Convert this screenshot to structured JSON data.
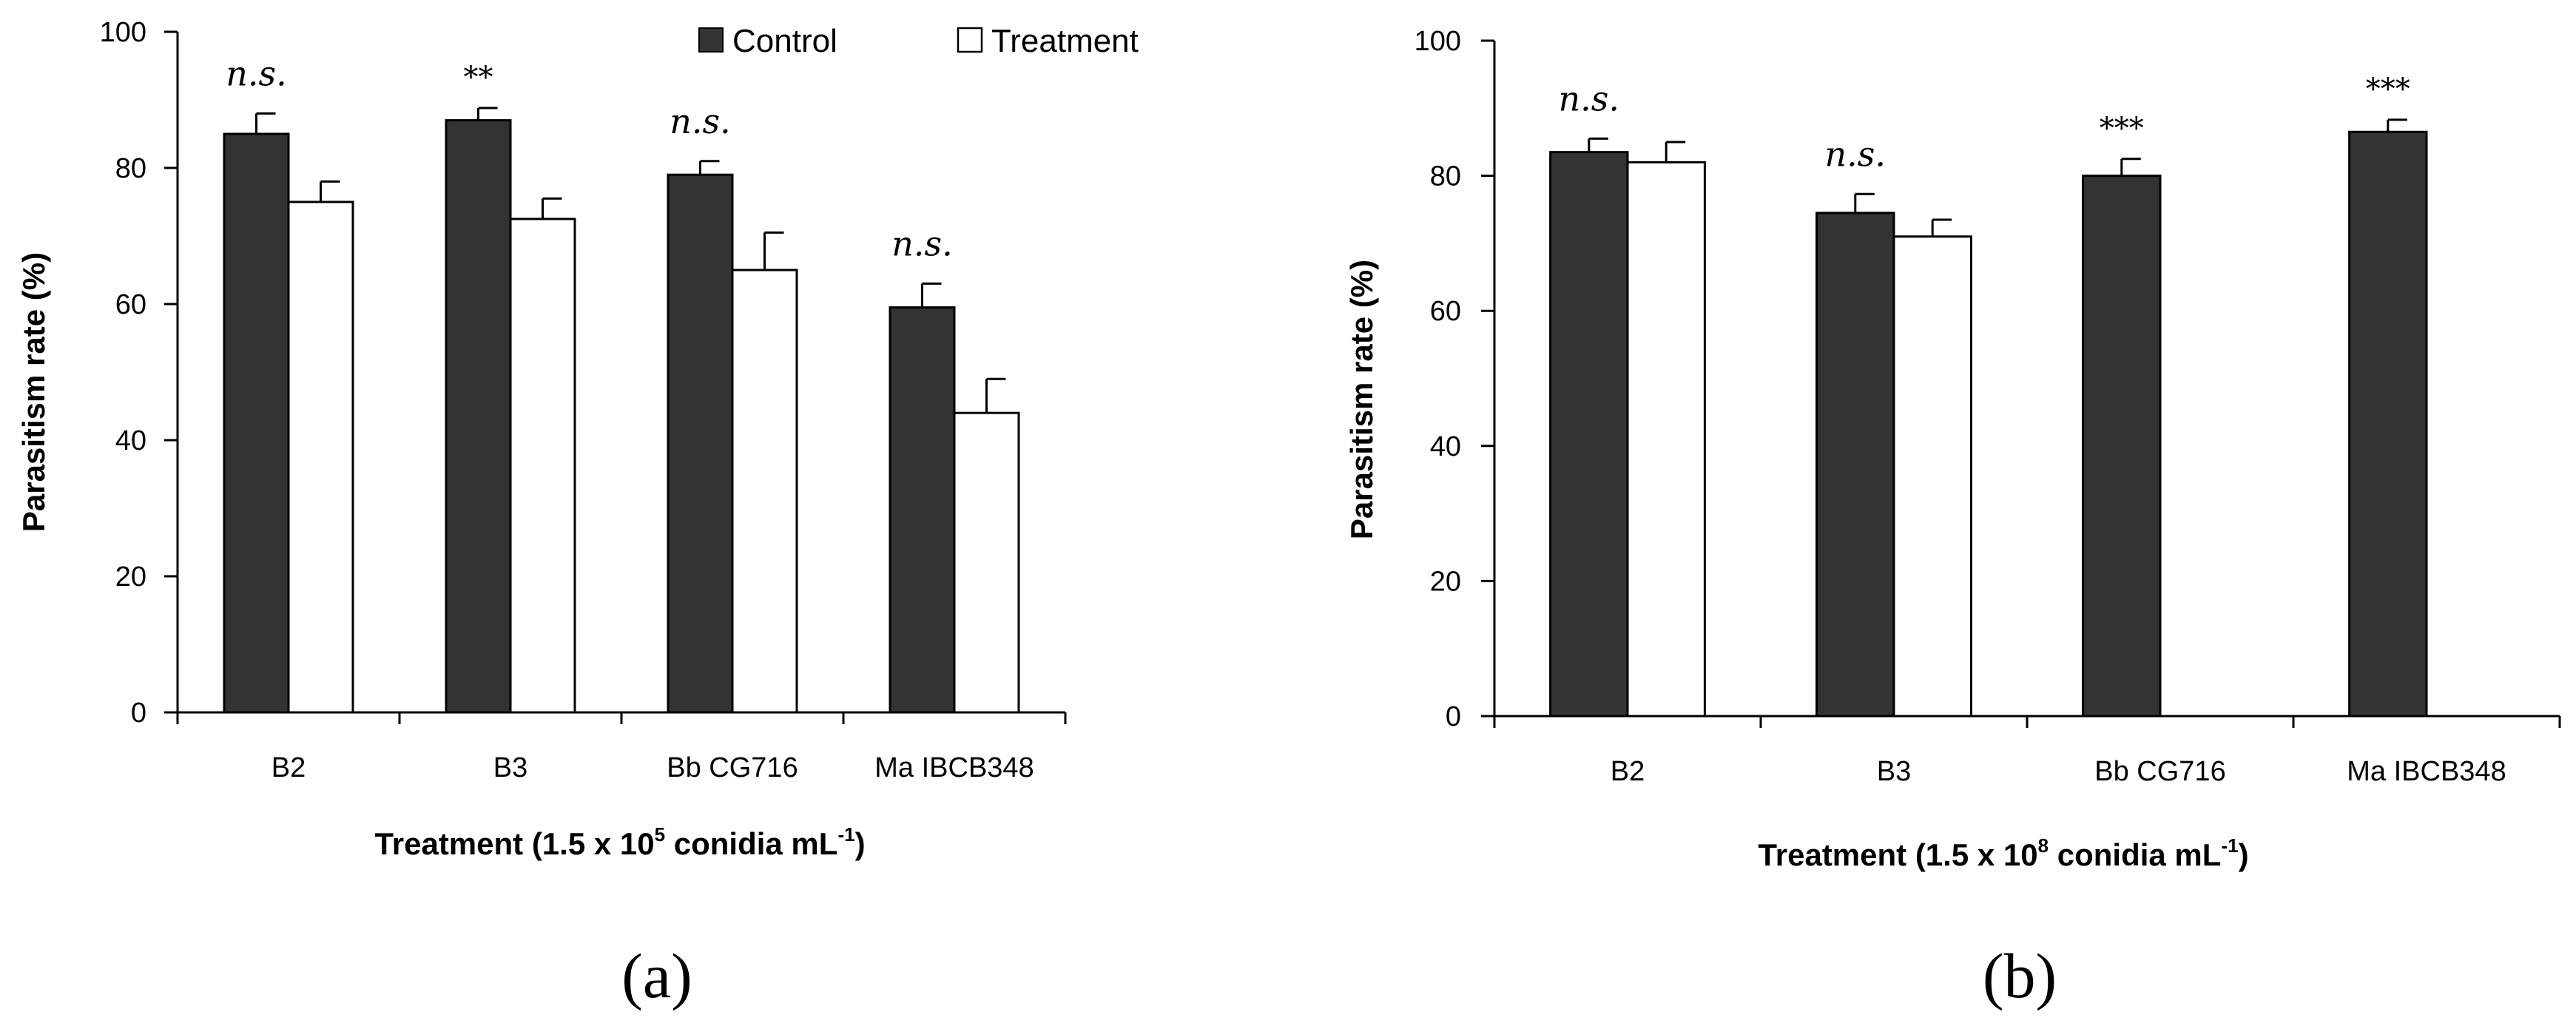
{
  "chart_data": [
    {
      "type": "bar",
      "panel_label": "(a)",
      "categories": [
        "B2",
        "B3",
        "Bb CG716",
        "Ma IBCB348"
      ],
      "series": [
        {
          "name": "Control",
          "values": [
            85,
            87,
            79,
            59.5
          ],
          "errors": [
            3,
            1.8,
            2,
            3.5
          ],
          "color": "#333333"
        },
        {
          "name": "Treatment",
          "values": [
            75,
            72.5,
            65,
            44
          ],
          "errors": [
            3,
            3,
            5.5,
            5
          ],
          "color": "#ffffff"
        }
      ],
      "significance": [
        "n.s.",
        "**",
        "n.s.",
        "n.s."
      ],
      "ylabel": "Parasitism rate (%)",
      "xlabel": {
        "main": "Treatment (1.5 x 10",
        "sup1": "5",
        "mid": " conidia mL",
        "sup2": "-1",
        "end": ")"
      },
      "ylim": [
        0,
        100
      ],
      "yticks": [
        "0",
        "20",
        "40",
        "60",
        "80",
        "100"
      ],
      "legend": "top"
    },
    {
      "type": "bar",
      "panel_label": "(b)",
      "categories": [
        "B2",
        "B3",
        "Bb CG716",
        "Ma IBCB348"
      ],
      "series": [
        {
          "name": "Control",
          "values": [
            83.5,
            74.5,
            80,
            86.5
          ],
          "errors": [
            2,
            2.8,
            2.5,
            1.8
          ],
          "color": "#333333"
        },
        {
          "name": "Treatment",
          "values": [
            82,
            71,
            null,
            null
          ],
          "errors": [
            3,
            2.5,
            null,
            null
          ],
          "color": "#ffffff"
        }
      ],
      "significance": [
        "n.s.",
        "n.s.",
        "***",
        "***"
      ],
      "ylabel": "Parasitism rate (%)",
      "xlabel": {
        "main": "Treatment (1.5 x 10",
        "sup1": "8",
        "mid": " conidia mL",
        "sup2": "-1",
        "end": ")"
      },
      "ylim": [
        0,
        100
      ],
      "yticks": [
        "0",
        "20",
        "40",
        "60",
        "80",
        "100"
      ]
    }
  ],
  "colors": {
    "control": "#333333",
    "treatment": "#ffffff",
    "axis": "#000000"
  }
}
